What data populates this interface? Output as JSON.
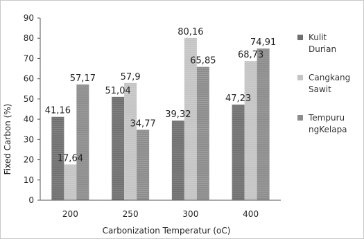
{
  "chart_data": {
    "type": "bar",
    "categories": [
      "200",
      "250",
      "300",
      "400"
    ],
    "series": [
      {
        "name": "Kulit Durian",
        "name_lines": [
          "Kulit",
          "Durian"
        ],
        "color": "#6f6f6f",
        "values": [
          41.16,
          51.04,
          39.32,
          47.23
        ],
        "labels": [
          "41,16",
          "51,04",
          "39,32",
          "47,23"
        ]
      },
      {
        "name": "Cangkang Sawit",
        "name_lines": [
          "Cangkang",
          "Sawit"
        ],
        "color": "#c4c4c4",
        "values": [
          17.64,
          57.9,
          80.16,
          68.73
        ],
        "labels": [
          "17,64",
          "57,9",
          "80,16",
          "68,73"
        ]
      },
      {
        "name": "Tempurung Kelapa",
        "name_lines": [
          "Tempuru",
          "ngKelapa"
        ],
        "color": "#8c8c8c",
        "values": [
          57.17,
          34.77,
          65.85,
          74.91
        ],
        "labels": [
          "57,17",
          "34,77",
          "65,85",
          "74,91"
        ]
      }
    ],
    "xlabel": "Carbonization Temperatur (oC)",
    "ylabel": "Fixed Carbon (%)",
    "ylim": [
      0,
      90
    ],
    "yticks": [
      0,
      10,
      20,
      30,
      40,
      50,
      60,
      70,
      80,
      90
    ],
    "grid": false,
    "legend_position": "right"
  }
}
